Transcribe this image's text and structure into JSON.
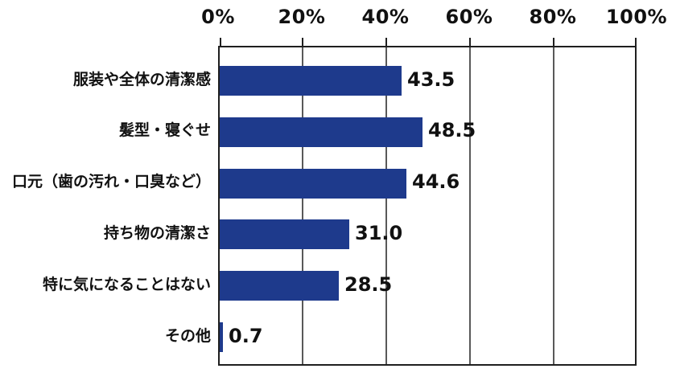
{
  "chart_data": {
    "type": "bar",
    "orientation": "horizontal",
    "title": "",
    "xlabel": "",
    "ylabel": "",
    "xlim": [
      0,
      100
    ],
    "grid": true,
    "axis_position": "top",
    "categories": [
      "服装や全体の清潔感",
      "髪型・寝ぐせ",
      "口元（歯の汚れ・口臭など）",
      "持ち物の清潔さ",
      "特に気になることはない",
      "その他"
    ],
    "values": [
      43.5,
      48.5,
      44.6,
      31.0,
      28.5,
      0.7
    ],
    "value_labels": [
      "43.5",
      "48.5",
      "44.6",
      "31.0",
      "28.5",
      "0.7"
    ],
    "x_ticks": [
      {
        "label": "0%",
        "value": 0
      },
      {
        "label": "20%",
        "value": 20
      },
      {
        "label": "40%",
        "value": 40
      },
      {
        "label": "60%",
        "value": 60
      },
      {
        "label": "80%",
        "value": 80
      },
      {
        "label": "100%",
        "value": 100
      }
    ],
    "colors": {
      "bar": "#1e3a8c",
      "gridline": "#595959",
      "axis_border": "#1f1f1f",
      "text": "#111111",
      "background": "#ffffff"
    }
  }
}
